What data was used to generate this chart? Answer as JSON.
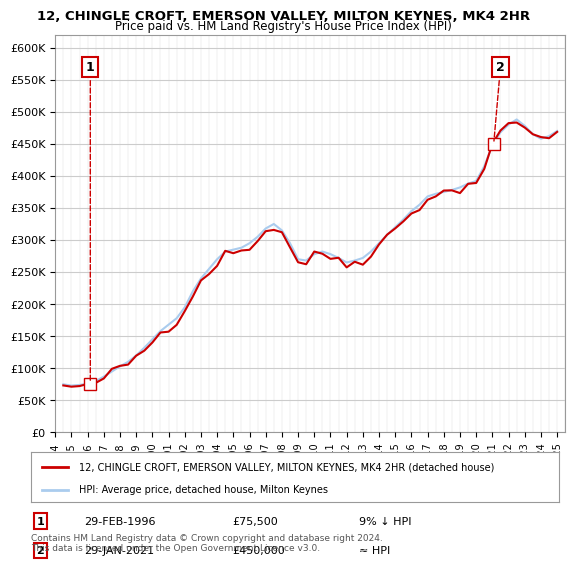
{
  "title1": "12, CHINGLE CROFT, EMERSON VALLEY, MILTON KEYNES, MK4 2HR",
  "title2": "Price paid vs. HM Land Registry's House Price Index (HPI)",
  "legend_label_red": "12, CHINGLE CROFT, EMERSON VALLEY, MILTON KEYNES, MK4 2HR (detached house)",
  "legend_label_blue": "HPI: Average price, detached house, Milton Keynes",
  "annotation1_label": "1",
  "annotation1_date": "29-FEB-1996",
  "annotation1_price": "£75,500",
  "annotation1_hpi": "9% ↓ HPI",
  "annotation2_label": "2",
  "annotation2_date": "29-JAN-2021",
  "annotation2_price": "£450,000",
  "annotation2_hpi": "≈ HPI",
  "footnote": "Contains HM Land Registry data © Crown copyright and database right 2024.\nThis data is licensed under the Open Government Licence v3.0.",
  "ylim_min": 0,
  "ylim_max": 620000,
  "yticks": [
    0,
    50000,
    100000,
    150000,
    200000,
    250000,
    300000,
    350000,
    400000,
    450000,
    500000,
    550000,
    600000
  ],
  "background_color": "#ffffff",
  "grid_color": "#cccccc",
  "hpi_line_color": "#aaccee",
  "price_line_color": "#cc0000",
  "annotation_box_color": "#cc0000"
}
